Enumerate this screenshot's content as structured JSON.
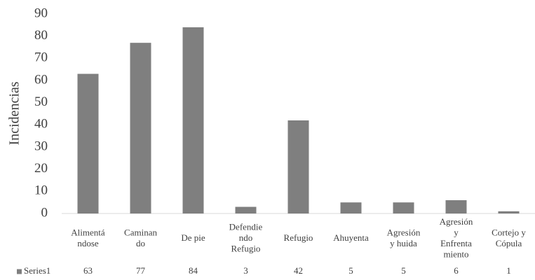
{
  "chart_data": {
    "type": "bar",
    "y_label": "Incidencias",
    "categories": [
      "Alimentá\nndose",
      "Caminan\ndo",
      "De pie",
      "Defendie\nndo\nRefugio",
      "Refugio",
      "Ahuyenta",
      "Agresión\ny huida",
      "Agresión\ny\nEnfrenta\nmiento",
      "Cortejo y\nCópula"
    ],
    "series": [
      {
        "name": "Series1",
        "color": "#7f7f7f",
        "values": [
          63,
          77,
          84,
          3,
          42,
          5,
          5,
          6,
          1
        ]
      }
    ],
    "ylim": [
      0,
      90
    ],
    "yticks": [
      0,
      10,
      20,
      30,
      40,
      50,
      60,
      70,
      80,
      90
    ],
    "grid": false
  }
}
